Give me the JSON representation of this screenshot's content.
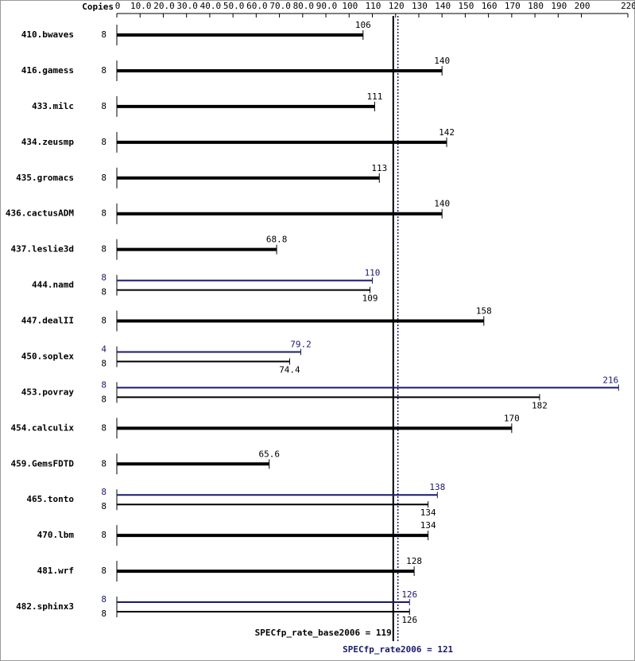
{
  "chart_data": {
    "type": "bar",
    "x_label": "Copies",
    "categories": [
      "410.bwaves",
      "416.gamess",
      "433.milc",
      "434.zeusmp",
      "435.gromacs",
      "436.cactusADM",
      "437.leslie3d",
      "444.namd",
      "447.dealII",
      "450.soplex",
      "453.povray",
      "454.calculix",
      "459.GemsFDTD",
      "465.tonto",
      "470.lbm",
      "481.wrf",
      "482.sphinx3"
    ],
    "series": [
      {
        "color": "#000000",
        "copies": [
          8,
          8,
          8,
          8,
          8,
          8,
          8,
          8,
          8,
          8,
          8,
          8,
          8,
          8,
          8,
          8,
          8
        ],
        "values": [
          106,
          140,
          111,
          142,
          113,
          140,
          68.8,
          109,
          158,
          74.4,
          182,
          170,
          65.6,
          134,
          134,
          128,
          126
        ]
      },
      {
        "color": "#191970",
        "copies": [
          null,
          null,
          null,
          null,
          null,
          null,
          null,
          8,
          null,
          4,
          8,
          null,
          null,
          8,
          null,
          null,
          8
        ],
        "values": [
          null,
          null,
          null,
          null,
          null,
          null,
          null,
          110,
          null,
          79.2,
          216,
          null,
          null,
          138,
          null,
          null,
          126
        ]
      }
    ],
    "reference_lines": [
      {
        "label": "SPECfp_rate_base2006 = 119",
        "value": 119,
        "color": "#000000",
        "style": "solid"
      },
      {
        "label": "SPECfp_rate2006 = 121",
        "value": 121,
        "color": "#191970",
        "style": "dotted"
      }
    ],
    "xlim": [
      0,
      220
    ],
    "xticks": [
      0,
      {
        "value": 10,
        "label": "10.0"
      },
      {
        "value": 20,
        "label": "20.0"
      },
      {
        "value": 30,
        "label": "30.0"
      },
      {
        "value": 40,
        "label": "40.0"
      },
      {
        "value": 50,
        "label": "50.0"
      },
      {
        "value": 60,
        "label": "60.0"
      },
      {
        "value": 70,
        "label": "70.0"
      },
      {
        "value": 80,
        "label": "80.0"
      },
      {
        "value": 90,
        "label": "90.0"
      },
      100,
      110,
      120,
      130,
      140,
      150,
      160,
      170,
      180,
      190,
      200,
      220
    ]
  }
}
